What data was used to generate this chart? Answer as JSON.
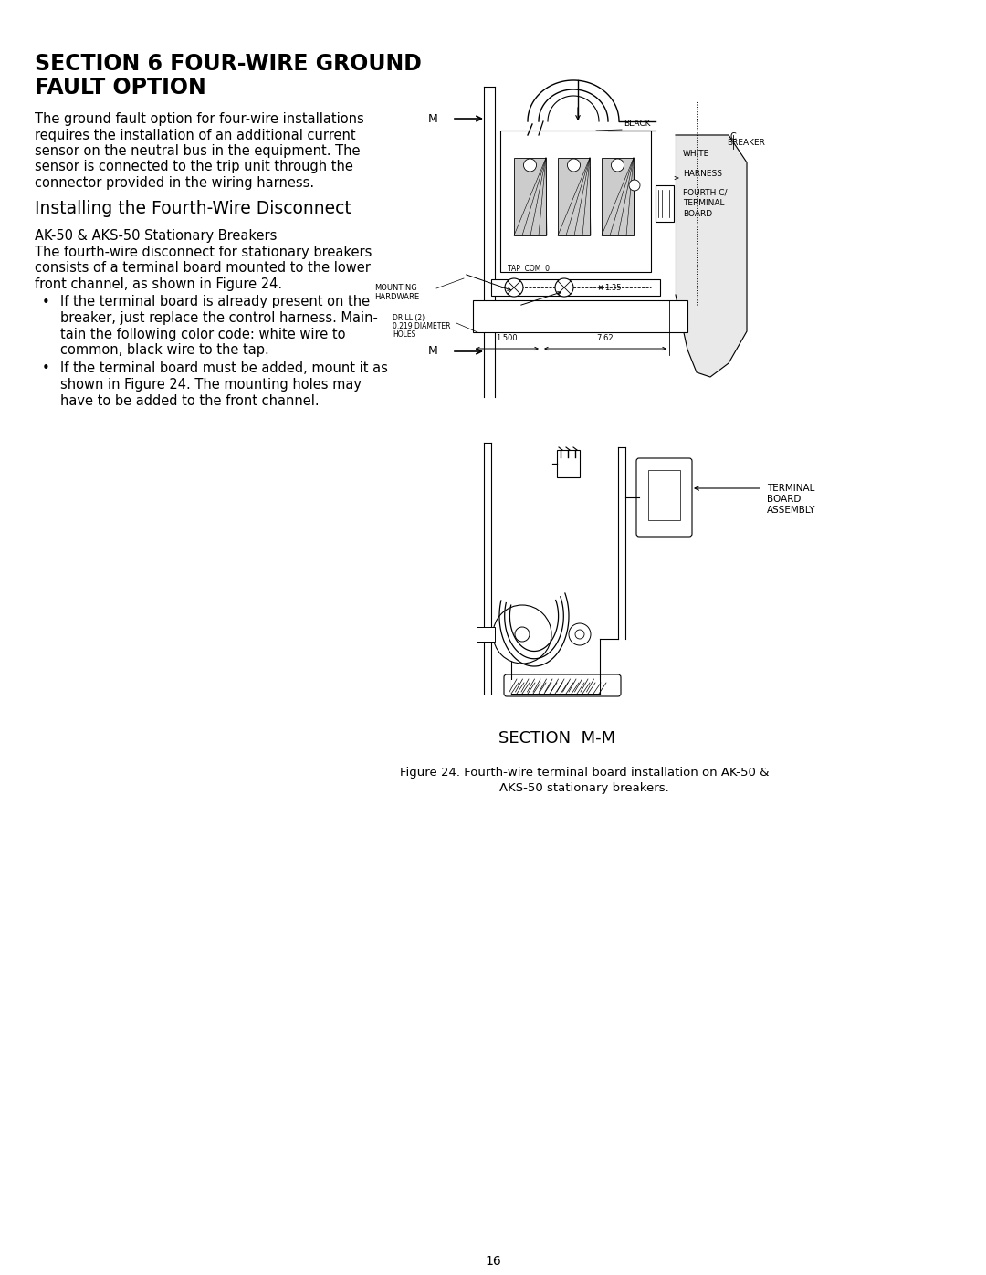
{
  "bg_color": "#ffffff",
  "text_color": "#000000",
  "title_line1": "SECTION 6 FOUR-WIRE GROUND",
  "title_line2": "FAULT OPTION",
  "body1": [
    "The ground fault option for four-wire installations",
    "requires the installation of an additional current",
    "sensor on the neutral bus in the equipment. The",
    "sensor is connected to the trip unit through the",
    "connector provided in the wiring harness."
  ],
  "subtitle1": "Installing the Fourth-Wire Disconnect",
  "subtitle2": "AK-50 & AKS-50 Stationary Breakers",
  "body2": [
    "The fourth-wire disconnect for stationary breakers",
    "consists of a terminal board mounted to the lower",
    "front channel, as shown in Figure 24."
  ],
  "bullet1": [
    "If the terminal board is already present on the",
    "breaker, just replace the control harness. Main-",
    "tain the following color code: white wire to",
    "common, black wire to the tap."
  ],
  "bullet2": [
    "If the terminal board must be added, mount it as",
    "shown in Figure 24. The mounting holes may",
    "have to be added to the front channel."
  ],
  "caption_line1": "Figure 24. Fourth-wire terminal board installation on AK-50 &",
  "caption_line2": "AKS-50 stationary breakers.",
  "section_label": "SECTION  M-M",
  "page_number": "16"
}
